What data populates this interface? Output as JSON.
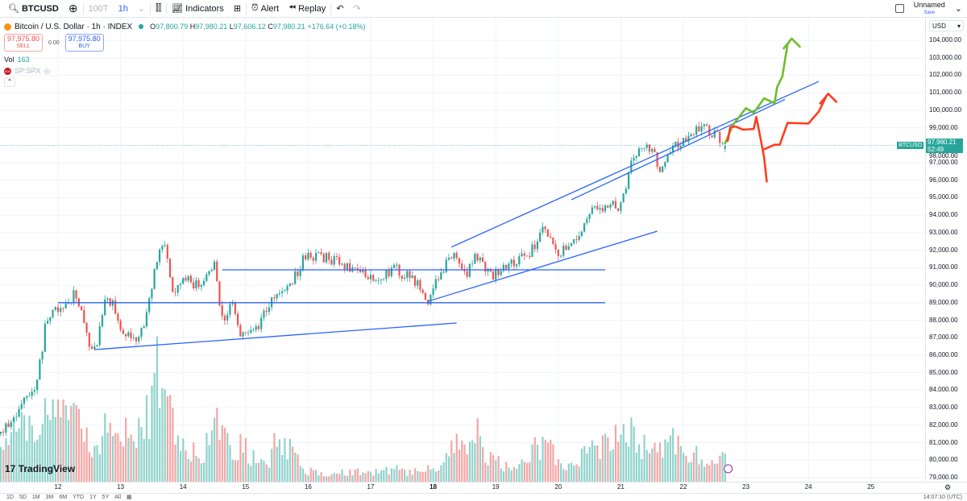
{
  "toolbar": {
    "symbol": "BTCUSD",
    "ticks": "100T",
    "interval": "1h",
    "indicators": "Indicators",
    "alert": "Alert",
    "replay": "Replay",
    "layout_name": "Unnamed",
    "save": "Save"
  },
  "legend": {
    "title": "Bitcoin / U.S. Dollar · 1h · INDEX",
    "o_label": "O",
    "o": "97,800.79",
    "h_label": "H",
    "h": "97,980.21",
    "l_label": "L",
    "l": "97,606.12",
    "c_label": "C",
    "c": "97,980.21",
    "change": "+176.64 (+0.18%)",
    "sell_price": "97,975.80",
    "sell": "SELL",
    "spread": "0.00",
    "buy_price": "97,975.80",
    "buy": "BUY",
    "vol_label": "Vol",
    "vol": "163",
    "compare": "SP:SPX",
    "compare_badge": "500"
  },
  "price_axis": {
    "currency": "USD",
    "last_label": "BTCUSD",
    "last_price": "97,980.21",
    "countdown": "52:49"
  },
  "bottombar": {
    "ranges": [
      "1D",
      "5D",
      "1M",
      "3M",
      "6M",
      "YTD",
      "1Y",
      "5Y",
      "All"
    ],
    "clock": "14:07:10 (UTC)"
  },
  "brand": "TradingView",
  "colors": {
    "up": "#26a69a",
    "down": "#ef5350",
    "vol_up": "#8fd3cc",
    "vol_down": "#f5a6a4",
    "trendline": "#2962ff",
    "scenario_bull": "#6cbf2a",
    "scenario_bear": "#ff3d1f"
  },
  "chart_data": {
    "type": "candlestick",
    "symbol": "BTCUSD",
    "interval": "1h",
    "ylim": [
      79000,
      104000
    ],
    "y_ticks": [
      79000,
      80000,
      81000,
      82000,
      83000,
      84000,
      85000,
      86000,
      87000,
      88000,
      89000,
      90000,
      91000,
      92000,
      93000,
      94000,
      95000,
      96000,
      97000,
      98000,
      99000,
      100000,
      101000,
      102000,
      103000,
      104000
    ],
    "x_ticks": [
      "12",
      "13",
      "14",
      "15",
      "16",
      "17",
      "18",
      "19",
      "20",
      "21",
      "22",
      "23",
      "24",
      "25"
    ],
    "grid": true,
    "close_path": [
      [
        "11 02:00",
        81500,
        190
      ],
      [
        "11 16:00",
        84500,
        370
      ],
      [
        "11 19:00",
        87500,
        470
      ],
      [
        "12 00:00",
        88800,
        420
      ],
      [
        "12 07:00",
        89500,
        330
      ],
      [
        "12 12:00",
        86500,
        230
      ],
      [
        "12 15:00",
        86500,
        230
      ],
      [
        "12 18:00",
        89000,
        370
      ],
      [
        "12 21:00",
        89000,
        280
      ],
      [
        "13 00:00",
        87500,
        280
      ],
      [
        "13 05:00",
        86700,
        230
      ],
      [
        "13 09:00",
        87600,
        280
      ],
      [
        "13 14:00",
        91500,
        650
      ],
      [
        "13 17:00",
        92500,
        470
      ],
      [
        "13 20:00",
        89500,
        370
      ],
      [
        "14 01:00",
        90500,
        190
      ],
      [
        "14 07:00",
        89800,
        140
      ],
      [
        "14 12:00",
        91500,
        330
      ],
      [
        "14 15:00",
        88000,
        280
      ],
      [
        "14 19:00",
        89000,
        140
      ],
      [
        "14 22:00",
        87200,
        230
      ],
      [
        "15 05:00",
        87800,
        90
      ],
      [
        "15 09:00",
        89000,
        140
      ],
      [
        "15 14:00",
        89800,
        280
      ],
      [
        "15 19:00",
        90500,
        140
      ],
      [
        "15 22:00",
        91500,
        70
      ],
      [
        "16 05:00",
        91600,
        50
      ],
      [
        "16 12:00",
        91400,
        50
      ],
      [
        "16 18:00",
        90800,
        70
      ],
      [
        "17 03:00",
        90500,
        50
      ],
      [
        "17 09:00",
        91000,
        70
      ],
      [
        "17 19:00",
        90000,
        50
      ],
      [
        "17 22:00",
        89200,
        70
      ],
      [
        "18 02:00",
        90500,
        90
      ],
      [
        "18 07:00",
        91800,
        190
      ],
      [
        "18 13:00",
        90700,
        230
      ],
      [
        "18 16:00",
        91900,
        280
      ],
      [
        "18 22:00",
        90500,
        120
      ],
      [
        "19 08:00",
        91500,
        70
      ],
      [
        "19 14:00",
        92000,
        190
      ],
      [
        "19 19:00",
        93500,
        230
      ],
      [
        "19 23:00",
        91800,
        160
      ],
      [
        "20 05:00",
        92300,
        90
      ],
      [
        "20 12:00",
        94000,
        190
      ],
      [
        "20 16:00",
        94500,
        230
      ],
      [
        "21 00:00",
        94500,
        280
      ],
      [
        "21 03:00",
        96500,
        330
      ],
      [
        "21 06:00",
        97500,
        190
      ],
      [
        "21 12:00",
        98000,
        190
      ],
      [
        "21 15:00",
        96500,
        230
      ],
      [
        "21 18:00",
        97500,
        280
      ],
      [
        "22 01:00",
        98500,
        190
      ],
      [
        "22 07:00",
        99000,
        140
      ],
      [
        "22 13:00",
        98500,
        140
      ],
      [
        "22 16:00",
        97980.21,
        163
      ]
    ],
    "last": {
      "open": 97800.79,
      "high": 97980.21,
      "low": 97606.12,
      "close": 97980.21,
      "volume": 163
    },
    "trendlines": [
      [
        [
          "12 14:00",
          86320
        ],
        [
          "18 09:00",
          87840
        ]
      ],
      [
        [
          "12 00:00",
          89000
        ],
        [
          "20 18:00",
          89000
        ]
      ],
      [
        [
          "14 15:00",
          90880
        ],
        [
          "20 18:00",
          90880
        ]
      ],
      [
        [
          "17 22:00",
          89080
        ],
        [
          "21 14:00",
          93090
        ]
      ],
      [
        [
          "18 07:00",
          92180
        ],
        [
          "24 04:00",
          101650
        ]
      ],
      [
        [
          "20 05:00",
          94880
        ],
        [
          "23 15:00",
          100620
        ]
      ]
    ],
    "annotations": [
      {
        "kind": "bullish-scenario",
        "points": [
          [
            "22 16:00",
            98100
          ],
          [
            "22 19:00",
            99150
          ],
          [
            "23 00:00",
            100120
          ],
          [
            "23 03:00",
            99850
          ],
          [
            "23 07:00",
            100680
          ],
          [
            "23 11:00",
            100400
          ],
          [
            "23 12:00",
            101330
          ],
          [
            "23 14:00",
            101930
          ],
          [
            "23 16:00",
            103780
          ],
          [
            "23 17:00",
            104000
          ]
        ],
        "arrow": true
      },
      {
        "kind": "bearish-scenario",
        "points": [
          [
            "22 17:00",
            98240
          ],
          [
            "22 18:00",
            99030
          ],
          [
            "22 20:00",
            99070
          ],
          [
            "22 23:00",
            98890
          ],
          [
            "23 03:00",
            98930
          ],
          [
            "23 04:00",
            99620
          ],
          [
            "23 06:00",
            98100
          ],
          [
            "23 07:00",
            97310
          ],
          [
            "23 08:00",
            95930
          ]
        ],
        "arrow": false
      },
      {
        "kind": "recovery-scenario",
        "points": [
          [
            "23 07:00",
            97770
          ],
          [
            "23 11:00",
            98030
          ],
          [
            "23 13:00",
            98030
          ],
          [
            "23 16:00",
            99280
          ],
          [
            "24 00:00",
            99240
          ],
          [
            "24 00:00",
            99240
          ],
          [
            "24 04:00",
            99930
          ],
          [
            "24 07:00",
            100850
          ]
        ],
        "arrow": true
      }
    ]
  }
}
